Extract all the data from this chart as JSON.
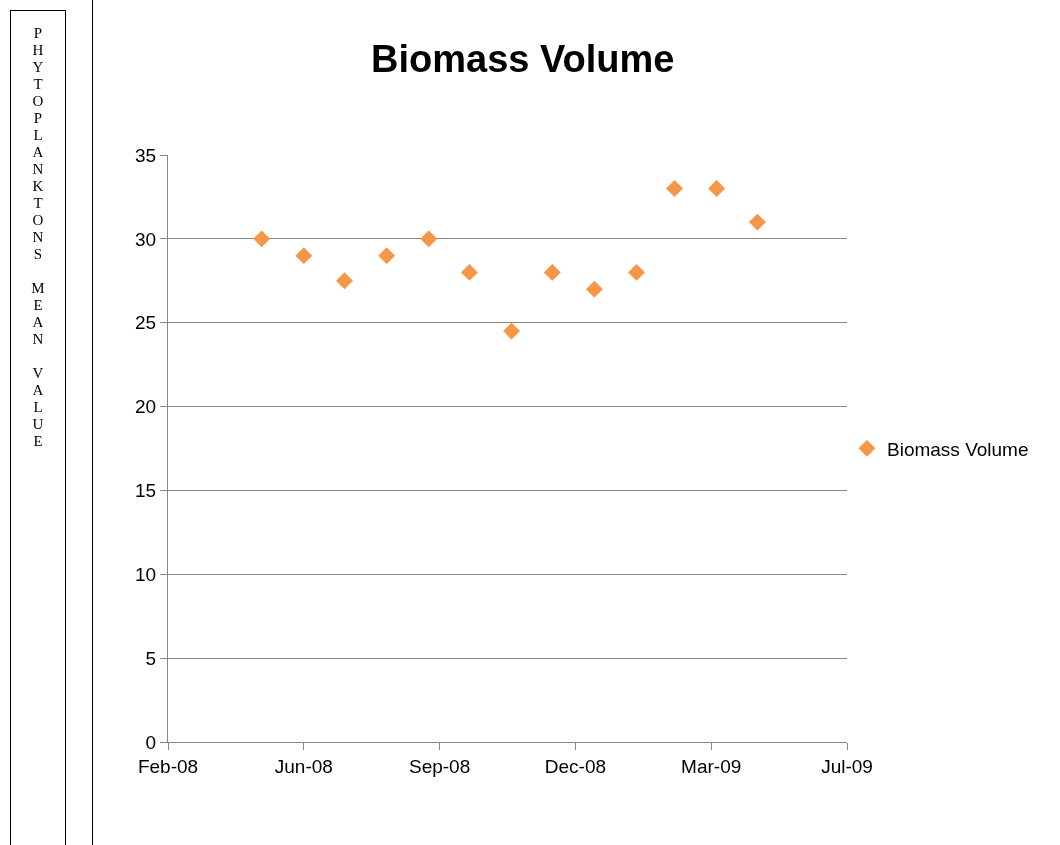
{
  "chart_data": {
    "type": "scatter",
    "title": "Biomass Volume",
    "ylabel": "PHYTOPLANKTONS MEAN VALUE",
    "x": [
      "2008-05-01",
      "2008-06-01",
      "2008-07-01",
      "2008-08-01",
      "2008-09-01",
      "2008-10-01",
      "2008-11-01",
      "2008-12-01",
      "2009-01-01",
      "2009-02-01",
      "2009-03-01",
      "2009-04-01",
      "2009-05-01"
    ],
    "series": [
      {
        "name": "Biomass Volume",
        "color": "#f79646",
        "values": [
          30,
          29,
          27.5,
          29,
          30,
          28,
          24.5,
          28,
          27,
          28,
          33,
          33,
          31
        ]
      }
    ],
    "xlim": [
      "2008-02-22",
      "2009-07-06"
    ],
    "xticks": [
      {
        "value": "2008-02-22",
        "label": "Feb-08"
      },
      {
        "value": "2008-06-01",
        "label": "Jun-08"
      },
      {
        "value": "2008-09-09",
        "label": "Sep-08"
      },
      {
        "value": "2008-12-18",
        "label": "Dec-08"
      },
      {
        "value": "2009-03-28",
        "label": "Mar-09"
      },
      {
        "value": "2009-07-06",
        "label": "Jul-09"
      }
    ],
    "ylim": [
      0,
      35
    ],
    "yticks": [
      0,
      5,
      10,
      15,
      20,
      25,
      30,
      35
    ],
    "grid": "y",
    "legend": "right",
    "marker": "diamond"
  }
}
